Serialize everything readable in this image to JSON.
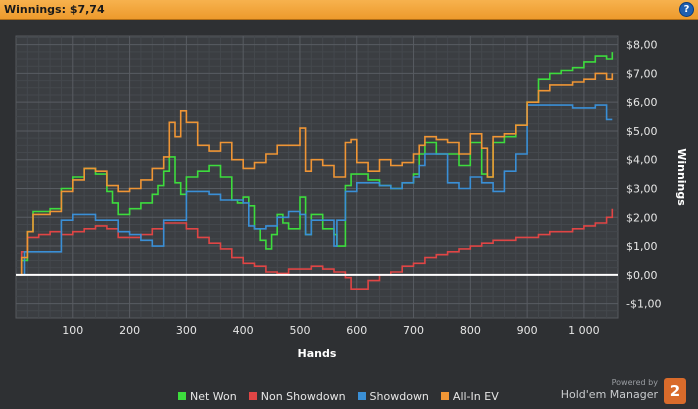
{
  "header": {
    "title": "Winnings: $7,74",
    "help_label": "?"
  },
  "branding": {
    "powered_by": "Powered by",
    "product": "Hold'em Manager",
    "badge": "2"
  },
  "chart_data": {
    "type": "line",
    "title": "Winnings: $7,74",
    "xlabel": "Hands",
    "ylabel": "Winnings",
    "xlim": [
      0,
      1060
    ],
    "ylim": [
      -1.5,
      8.3
    ],
    "x_ticks": [
      100,
      200,
      300,
      400,
      500,
      600,
      700,
      800,
      900,
      1000
    ],
    "x_tick_labels": [
      "100",
      "200",
      "300",
      "400",
      "500",
      "600",
      "700",
      "800",
      "900",
      "1 000"
    ],
    "y_ticks": [
      -1,
      0,
      1,
      2,
      3,
      4,
      5,
      6,
      7,
      8
    ],
    "y_tick_labels": [
      "-$1,00",
      "$0,00",
      "$1,00",
      "$2,00",
      "$3,00",
      "$4,00",
      "$5,00",
      "$6,00",
      "$7,00",
      "$8,00"
    ],
    "grid": true,
    "legend_position": "bottom",
    "series": [
      {
        "name": "Net Won",
        "color": "#3ddc3d",
        "x": [
          0,
          10,
          20,
          30,
          60,
          80,
          100,
          120,
          140,
          160,
          170,
          180,
          200,
          220,
          240,
          250,
          260,
          270,
          280,
          290,
          300,
          320,
          340,
          360,
          380,
          390,
          400,
          410,
          420,
          430,
          440,
          450,
          460,
          470,
          480,
          500,
          510,
          520,
          540,
          560,
          565,
          580,
          590,
          600,
          620,
          640,
          660,
          680,
          700,
          710,
          720,
          740,
          760,
          780,
          800,
          820,
          830,
          840,
          860,
          880,
          900,
          920,
          940,
          960,
          980,
          1000,
          1020,
          1040,
          1050
        ],
        "y": [
          0,
          0.5,
          1.5,
          2.2,
          2.3,
          3.0,
          3.4,
          3.7,
          3.5,
          2.9,
          2.5,
          2.1,
          2.3,
          2.5,
          2.8,
          3.1,
          3.6,
          4.1,
          3.2,
          2.8,
          3.4,
          3.6,
          3.8,
          3.4,
          2.6,
          2.5,
          2.7,
          2.4,
          1.6,
          1.2,
          0.9,
          1.4,
          2.1,
          1.8,
          1.6,
          2.7,
          1.4,
          2.1,
          1.6,
          1.4,
          1.0,
          3.1,
          3.5,
          3.5,
          3.3,
          3.1,
          3.0,
          3.2,
          3.5,
          4.2,
          4.6,
          4.2,
          4.2,
          3.8,
          4.6,
          3.5,
          3.4,
          4.6,
          4.8,
          5.2,
          6.0,
          6.8,
          7.0,
          7.1,
          7.2,
          7.4,
          7.6,
          7.5,
          7.74
        ]
      },
      {
        "name": "Non Showdown",
        "color": "#e04545",
        "x": [
          0,
          10,
          20,
          40,
          60,
          80,
          100,
          120,
          140,
          160,
          180,
          200,
          220,
          240,
          260,
          280,
          300,
          320,
          340,
          360,
          380,
          400,
          420,
          440,
          460,
          480,
          500,
          520,
          540,
          560,
          580,
          590,
          600,
          620,
          640,
          660,
          680,
          700,
          720,
          740,
          760,
          780,
          800,
          820,
          840,
          860,
          880,
          900,
          920,
          940,
          960,
          980,
          1000,
          1020,
          1040,
          1050
        ],
        "y": [
          0,
          0.8,
          1.3,
          1.4,
          1.5,
          1.4,
          1.5,
          1.6,
          1.7,
          1.6,
          1.3,
          1.3,
          1.4,
          1.6,
          1.8,
          1.8,
          1.6,
          1.3,
          1.1,
          0.9,
          0.6,
          0.4,
          0.3,
          0.1,
          0.05,
          0.2,
          0.2,
          0.3,
          0.2,
          0.1,
          -0.1,
          -0.5,
          -0.5,
          -0.2,
          0.0,
          0.1,
          0.3,
          0.4,
          0.6,
          0.7,
          0.8,
          0.9,
          1.0,
          1.1,
          1.2,
          1.2,
          1.3,
          1.3,
          1.4,
          1.5,
          1.5,
          1.6,
          1.7,
          1.8,
          2.0,
          2.3
        ]
      },
      {
        "name": "Showdown",
        "color": "#3a8fd6",
        "x": [
          0,
          15,
          20,
          60,
          80,
          100,
          120,
          140,
          160,
          180,
          200,
          220,
          240,
          260,
          280,
          300,
          320,
          340,
          360,
          380,
          400,
          410,
          420,
          440,
          460,
          480,
          500,
          510,
          520,
          540,
          560,
          565,
          580,
          600,
          620,
          640,
          660,
          680,
          700,
          710,
          720,
          740,
          760,
          780,
          800,
          820,
          840,
          860,
          880,
          900,
          940,
          960,
          980,
          1000,
          1020,
          1040,
          1050
        ],
        "y": [
          0,
          0.8,
          0.8,
          0.8,
          1.9,
          2.1,
          2.1,
          1.9,
          1.9,
          1.5,
          1.4,
          1.2,
          1.0,
          1.9,
          1.9,
          2.9,
          2.9,
          2.8,
          2.6,
          2.6,
          2.5,
          1.7,
          1.6,
          1.7,
          2.0,
          2.2,
          2.1,
          1.4,
          1.9,
          1.9,
          1.0,
          1.9,
          2.9,
          3.2,
          3.2,
          3.1,
          3.0,
          3.2,
          3.4,
          3.8,
          4.2,
          4.2,
          3.2,
          3.0,
          3.4,
          3.2,
          2.9,
          3.6,
          4.2,
          5.9,
          5.9,
          5.9,
          5.8,
          5.8,
          5.9,
          5.4,
          5.4
        ]
      },
      {
        "name": "All-In EV",
        "color": "#ef9535",
        "x": [
          0,
          10,
          20,
          30,
          60,
          80,
          100,
          120,
          140,
          160,
          180,
          200,
          220,
          240,
          260,
          270,
          280,
          290,
          300,
          320,
          340,
          360,
          380,
          400,
          420,
          440,
          460,
          480,
          500,
          510,
          520,
          540,
          560,
          580,
          590,
          600,
          620,
          640,
          660,
          680,
          700,
          710,
          720,
          740,
          760,
          780,
          800,
          820,
          830,
          840,
          860,
          880,
          900,
          920,
          940,
          960,
          980,
          1000,
          1020,
          1040,
          1050
        ],
        "y": [
          0,
          0.6,
          1.5,
          2.1,
          2.2,
          2.9,
          3.3,
          3.7,
          3.6,
          3.1,
          2.9,
          3.0,
          3.3,
          3.7,
          4.1,
          5.3,
          4.8,
          5.7,
          5.3,
          4.5,
          4.3,
          4.6,
          4.0,
          3.7,
          3.9,
          4.2,
          4.5,
          4.5,
          5.1,
          3.6,
          4.0,
          3.8,
          3.4,
          4.6,
          4.7,
          3.9,
          3.6,
          4.0,
          3.8,
          3.9,
          4.2,
          4.5,
          4.8,
          4.7,
          4.6,
          4.2,
          4.9,
          4.4,
          3.4,
          4.8,
          4.9,
          5.2,
          6.0,
          6.4,
          6.6,
          6.6,
          6.7,
          6.8,
          7.0,
          6.8,
          7.0
        ]
      }
    ],
    "baseline": {
      "value": 0,
      "color": "#ffffff"
    }
  }
}
